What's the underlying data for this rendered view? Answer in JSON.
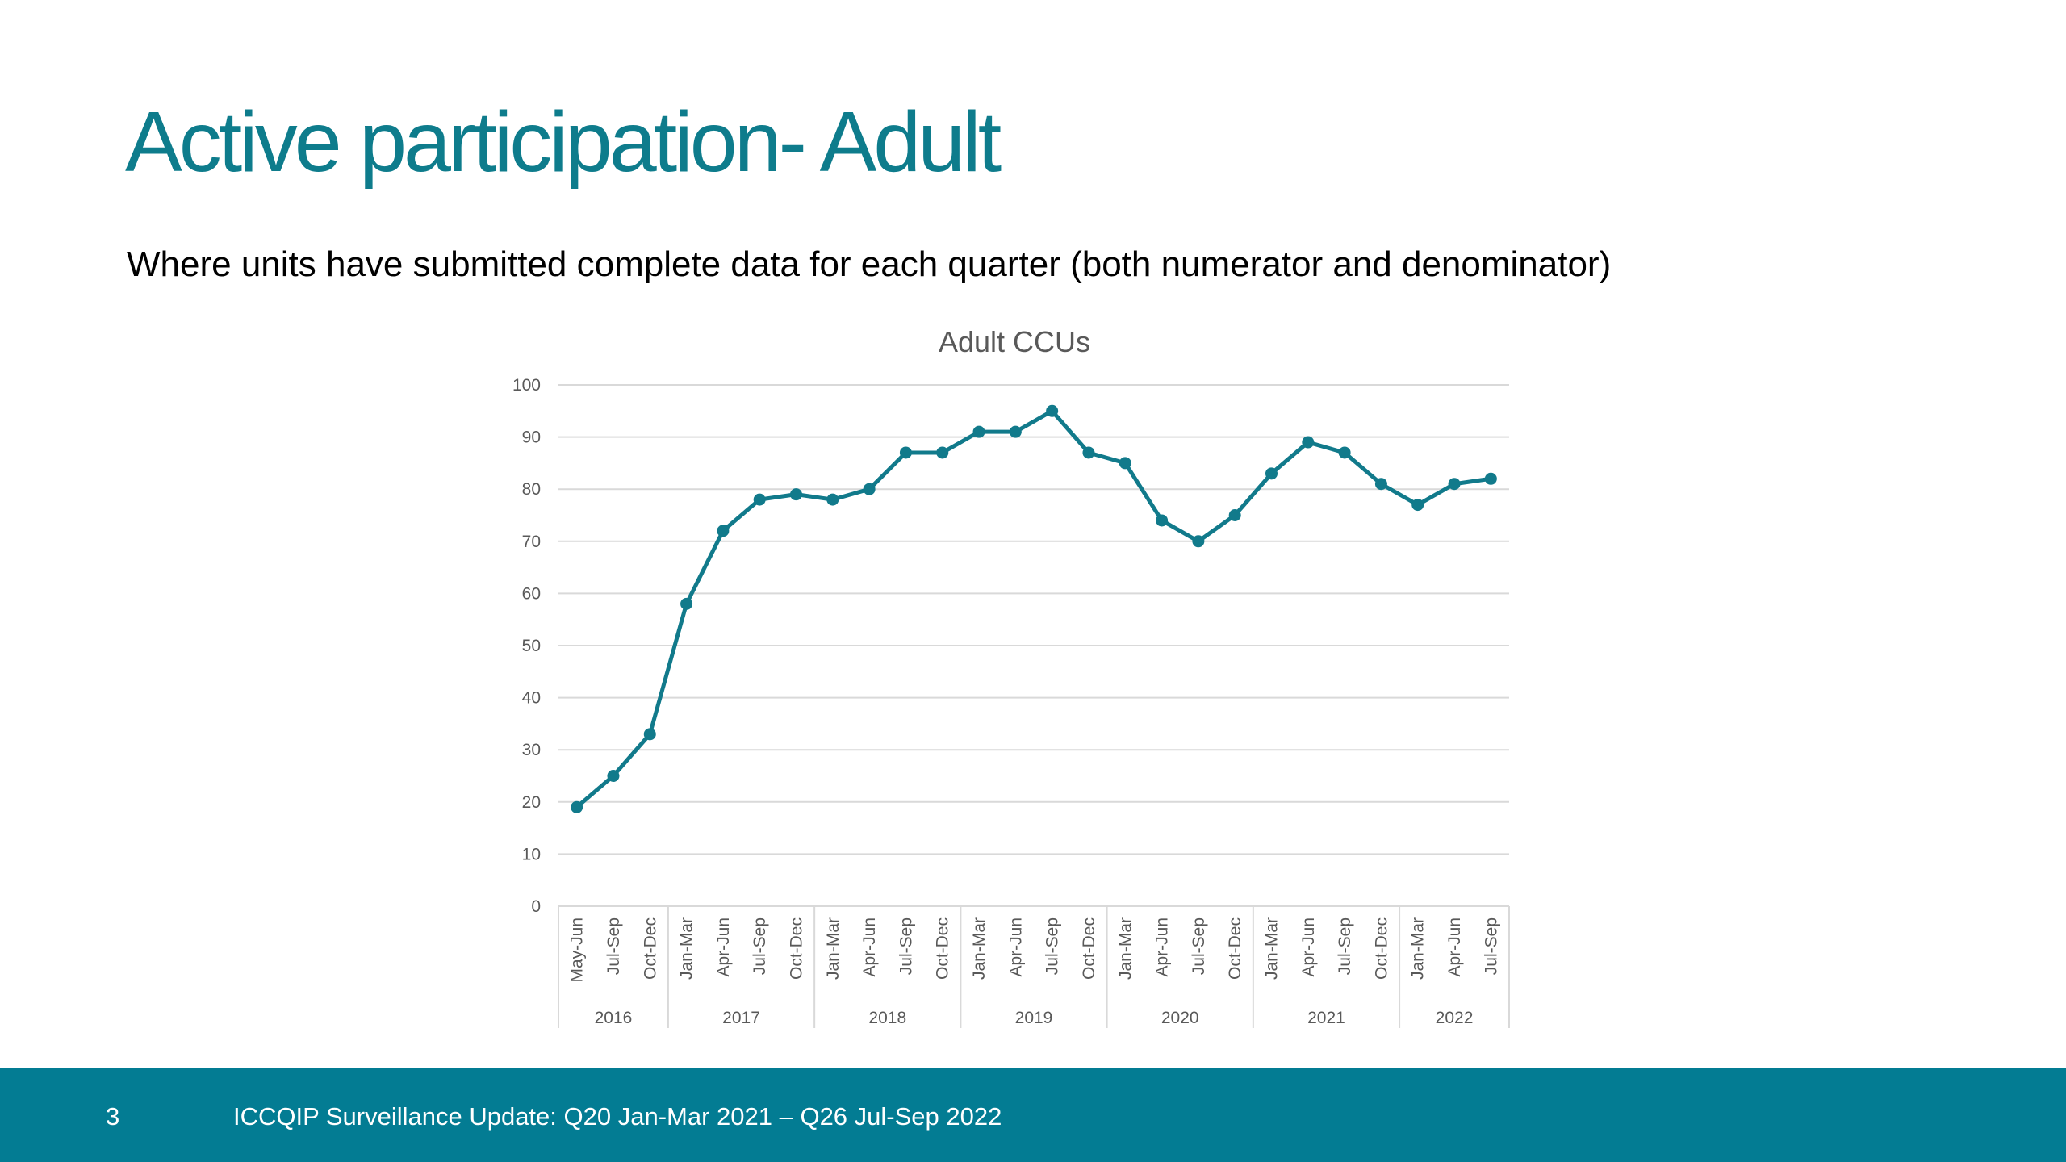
{
  "header": {
    "title": "Active participation- Adult",
    "subtitle": "Where units have submitted complete data for each quarter (both numerator and denominator)"
  },
  "chart_data": {
    "type": "line",
    "title": "Adult CCUs",
    "categories": [
      {
        "label": "May-Jun",
        "group": "2016"
      },
      {
        "label": "Jul-Sep",
        "group": "2016"
      },
      {
        "label": "Oct-Dec",
        "group": "2016"
      },
      {
        "label": "Jan-Mar",
        "group": "2017"
      },
      {
        "label": "Apr-Jun",
        "group": "2017"
      },
      {
        "label": "Jul-Sep",
        "group": "2017"
      },
      {
        "label": "Oct-Dec",
        "group": "2017"
      },
      {
        "label": "Jan-Mar",
        "group": "2018"
      },
      {
        "label": "Apr-Jun",
        "group": "2018"
      },
      {
        "label": "Jul-Sep",
        "group": "2018"
      },
      {
        "label": "Oct-Dec",
        "group": "2018"
      },
      {
        "label": "Jan-Mar",
        "group": "2019"
      },
      {
        "label": "Apr-Jun",
        "group": "2019"
      },
      {
        "label": "Jul-Sep",
        "group": "2019"
      },
      {
        "label": "Oct-Dec",
        "group": "2019"
      },
      {
        "label": "Jan-Mar",
        "group": "2020"
      },
      {
        "label": "Apr-Jun",
        "group": "2020"
      },
      {
        "label": "Jul-Sep",
        "group": "2020"
      },
      {
        "label": "Oct-Dec",
        "group": "2020"
      },
      {
        "label": "Jan-Mar",
        "group": "2021"
      },
      {
        "label": "Apr-Jun",
        "group": "2021"
      },
      {
        "label": "Jul-Sep",
        "group": "2021"
      },
      {
        "label": "Oct-Dec",
        "group": "2021"
      },
      {
        "label": "Jan-Mar",
        "group": "2022"
      },
      {
        "label": "Apr-Jun",
        "group": "2022"
      },
      {
        "label": "Jul-Sep",
        "group": "2022"
      }
    ],
    "values": [
      19,
      25,
      33,
      58,
      72,
      78,
      79,
      78,
      80,
      87,
      87,
      91,
      91,
      95,
      87,
      85,
      74,
      70,
      75,
      83,
      89,
      87,
      81,
      77,
      81,
      82
    ],
    "color": "#117a8b",
    "ylim": [
      0,
      100
    ],
    "yticks": [
      0,
      10,
      20,
      30,
      40,
      50,
      60,
      70,
      80,
      90,
      100
    ],
    "grid": true
  },
  "footer": {
    "page": "3",
    "text": "ICCQIP Surveillance Update: Q20 Jan-Mar 2021 – Q26 Jul-Sep 2022"
  }
}
